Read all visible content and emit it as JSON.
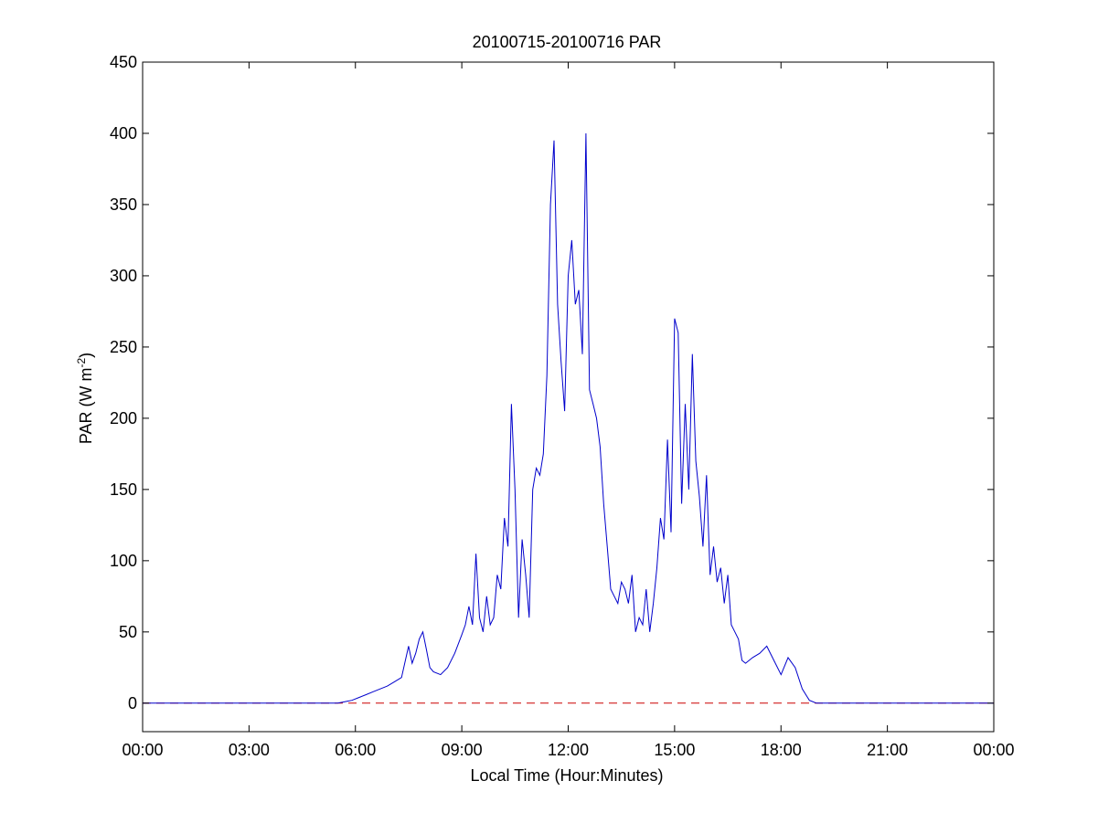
{
  "chart_data": {
    "type": "line",
    "title": "20100715-20100716 PAR",
    "xlabel": "Local Time (Hour:Minutes)",
    "ylabel_main": "PAR (W m",
    "ylabel_sup": "-2",
    "ylabel_close": ")",
    "xlim_hours": [
      0,
      24
    ],
    "ylim": [
      -20,
      450
    ],
    "x_ticks": [
      {
        "hour": 0,
        "label": "00:00"
      },
      {
        "hour": 3,
        "label": "03:00"
      },
      {
        "hour": 6,
        "label": "06:00"
      },
      {
        "hour": 9,
        "label": "09:00"
      },
      {
        "hour": 12,
        "label": "12:00"
      },
      {
        "hour": 15,
        "label": "15:00"
      },
      {
        "hour": 18,
        "label": "18:00"
      },
      {
        "hour": 21,
        "label": "21:00"
      },
      {
        "hour": 24,
        "label": "00:00"
      }
    ],
    "y_ticks": [
      0,
      50,
      100,
      150,
      200,
      250,
      300,
      350,
      400,
      450
    ],
    "grid": false,
    "reference_line": {
      "y": 0,
      "style": "dashed",
      "color": "#cc0000"
    },
    "series": [
      {
        "color": "#0000cc",
        "x_hours": [
          0,
          5.5,
          5.7,
          5.9,
          6.1,
          6.3,
          6.5,
          6.7,
          6.9,
          7.1,
          7.3,
          7.5,
          7.6,
          7.7,
          7.8,
          7.9,
          8.0,
          8.1,
          8.2,
          8.4,
          8.6,
          8.8,
          9.0,
          9.1,
          9.2,
          9.3,
          9.4,
          9.5,
          9.6,
          9.7,
          9.8,
          9.9,
          10.0,
          10.1,
          10.2,
          10.3,
          10.4,
          10.5,
          10.6,
          10.7,
          10.8,
          10.9,
          11.0,
          11.1,
          11.2,
          11.3,
          11.4,
          11.5,
          11.6,
          11.7,
          11.8,
          11.9,
          12.0,
          12.1,
          12.2,
          12.3,
          12.4,
          12.5,
          12.6,
          12.7,
          12.8,
          12.9,
          13.0,
          13.1,
          13.2,
          13.3,
          13.4,
          13.5,
          13.6,
          13.7,
          13.8,
          13.9,
          14.0,
          14.1,
          14.2,
          14.3,
          14.4,
          14.5,
          14.6,
          14.7,
          14.8,
          14.9,
          15.0,
          15.1,
          15.2,
          15.3,
          15.4,
          15.5,
          15.6,
          15.7,
          15.8,
          15.9,
          16.0,
          16.1,
          16.2,
          16.3,
          16.4,
          16.5,
          16.6,
          16.7,
          16.8,
          16.9,
          17.0,
          17.2,
          17.4,
          17.6,
          17.8,
          18.0,
          18.2,
          18.4,
          18.6,
          18.8,
          19.0,
          24
        ],
        "values": [
          0,
          0,
          1,
          2,
          4,
          6,
          8,
          10,
          12,
          15,
          18,
          40,
          28,
          35,
          45,
          50,
          38,
          25,
          22,
          20,
          25,
          35,
          48,
          55,
          68,
          55,
          105,
          60,
          50,
          75,
          55,
          60,
          90,
          80,
          130,
          110,
          210,
          150,
          60,
          115,
          90,
          60,
          150,
          165,
          160,
          175,
          230,
          350,
          395,
          280,
          240,
          205,
          300,
          325,
          280,
          290,
          245,
          400,
          220,
          210,
          200,
          180,
          140,
          110,
          80,
          75,
          70,
          85,
          80,
          70,
          90,
          50,
          60,
          55,
          80,
          50,
          70,
          95,
          130,
          115,
          185,
          120,
          270,
          260,
          140,
          210,
          150,
          245,
          170,
          145,
          110,
          160,
          90,
          110,
          85,
          95,
          70,
          90,
          55,
          50,
          45,
          30,
          28,
          32,
          35,
          40,
          30,
          20,
          32,
          25,
          10,
          2,
          0,
          0
        ]
      }
    ]
  }
}
